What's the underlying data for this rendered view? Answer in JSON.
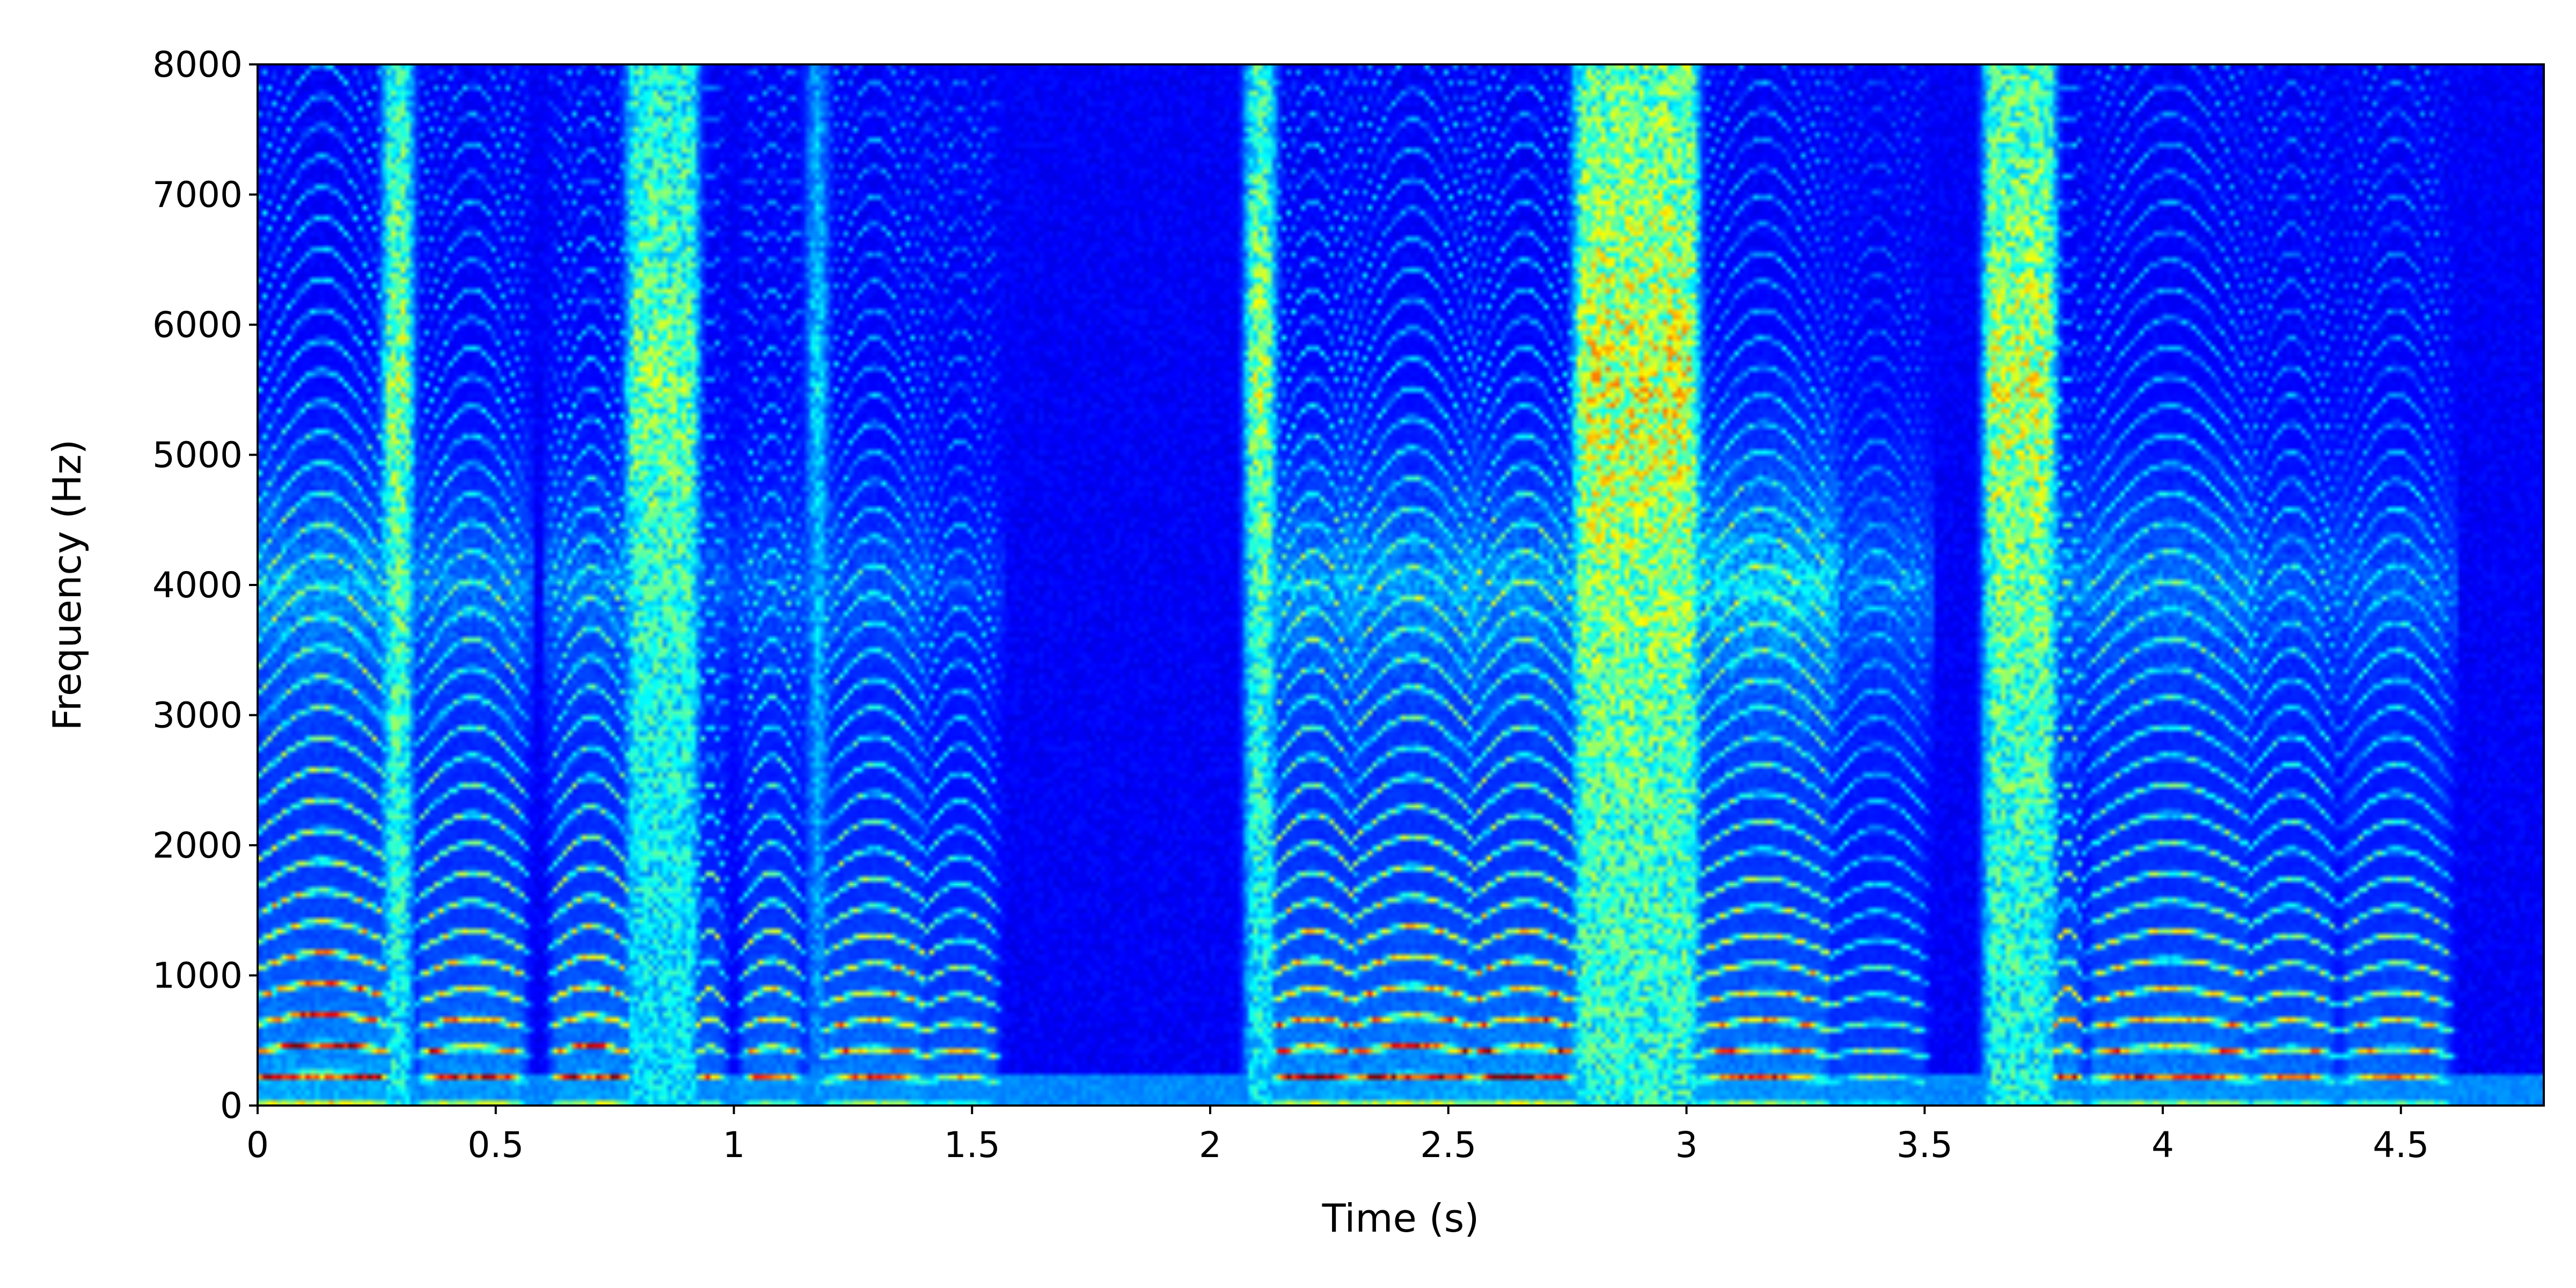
{
  "chart_data": {
    "type": "heatmap",
    "subtype": "spectrogram",
    "title": "",
    "xlabel": "Time (s)",
    "ylabel": "Frequency (Hz)",
    "xlim": [
      0,
      4.8
    ],
    "ylim": [
      0,
      8000
    ],
    "xticks": [
      0,
      0.5,
      1,
      1.5,
      2,
      2.5,
      3,
      3.5,
      4,
      4.5
    ],
    "xtick_labels": [
      "0",
      "0.5",
      "1",
      "1.5",
      "2",
      "2.5",
      "3",
      "3.5",
      "4",
      "4.5"
    ],
    "yticks": [
      0,
      1000,
      2000,
      3000,
      4000,
      5000,
      6000,
      7000,
      8000
    ],
    "ytick_labels": [
      "0",
      "1000",
      "2000",
      "3000",
      "4000",
      "5000",
      "6000",
      "7000",
      "8000"
    ],
    "colormap": "jet",
    "colors": {
      "low": "#00008f",
      "mid": "#00ffff",
      "high": "#ffff00",
      "peak": "#ff0000"
    },
    "grid": false,
    "legend": "none",
    "segments": [
      {
        "start": 0.0,
        "end": 0.27,
        "kind": "voiced",
        "f0": 210,
        "energy": 0.95,
        "high_energy": 0.25
      },
      {
        "start": 0.27,
        "end": 0.32,
        "kind": "fricative",
        "energy": 0.55,
        "high_energy": 0.6
      },
      {
        "start": 0.34,
        "end": 0.56,
        "kind": "voiced",
        "f0": 200,
        "energy": 0.85,
        "high_energy": 0.2
      },
      {
        "start": 0.62,
        "end": 0.78,
        "kind": "voiced",
        "f0": 205,
        "energy": 0.85,
        "high_energy": 0.2
      },
      {
        "start": 0.78,
        "end": 0.92,
        "kind": "fricative",
        "energy": 0.5,
        "high_energy": 0.55
      },
      {
        "start": 0.92,
        "end": 0.98,
        "kind": "voiced",
        "f0": 200,
        "energy": 0.7,
        "high_energy": 0.15
      },
      {
        "start": 1.02,
        "end": 1.14,
        "kind": "voiced",
        "f0": 200,
        "energy": 0.75,
        "high_energy": 0.15
      },
      {
        "start": 1.16,
        "end": 1.19,
        "kind": "fricative",
        "energy": 0.35,
        "high_energy": 0.35
      },
      {
        "start": 1.19,
        "end": 1.4,
        "kind": "voiced",
        "f0": 195,
        "energy": 0.8,
        "high_energy": 0.15
      },
      {
        "start": 1.4,
        "end": 1.55,
        "kind": "voiced",
        "f0": 190,
        "energy": 0.65,
        "high_energy": 0.1
      },
      {
        "start": 2.08,
        "end": 2.13,
        "kind": "fricative",
        "energy": 0.55,
        "high_energy": 0.6
      },
      {
        "start": 2.13,
        "end": 2.3,
        "kind": "voiced",
        "f0": 200,
        "energy": 0.9,
        "high_energy": 0.25
      },
      {
        "start": 2.3,
        "end": 2.55,
        "kind": "voiced",
        "f0": 205,
        "energy": 0.9,
        "high_energy": 0.25
      },
      {
        "start": 2.55,
        "end": 2.77,
        "kind": "voiced",
        "f0": 200,
        "energy": 0.9,
        "high_energy": 0.25
      },
      {
        "start": 2.77,
        "end": 3.02,
        "kind": "fricative",
        "energy": 0.65,
        "high_energy": 0.7
      },
      {
        "start": 3.02,
        "end": 3.3,
        "kind": "voiced",
        "f0": 195,
        "energy": 0.8,
        "high_energy": 0.35
      },
      {
        "start": 3.3,
        "end": 3.5,
        "kind": "voiced",
        "f0": 190,
        "energy": 0.5,
        "high_energy": 0.2
      },
      {
        "start": 3.63,
        "end": 3.77,
        "kind": "fricative",
        "energy": 0.6,
        "high_energy": 0.65
      },
      {
        "start": 3.77,
        "end": 3.83,
        "kind": "voiced",
        "f0": 200,
        "energy": 0.85,
        "high_energy": 0.2
      },
      {
        "start": 3.85,
        "end": 4.18,
        "kind": "voiced",
        "f0": 200,
        "energy": 0.8,
        "high_energy": 0.2
      },
      {
        "start": 4.18,
        "end": 4.36,
        "kind": "voiced",
        "f0": 195,
        "energy": 0.7,
        "high_energy": 0.15
      },
      {
        "start": 4.38,
        "end": 4.6,
        "kind": "voiced",
        "f0": 195,
        "energy": 0.7,
        "high_energy": 0.15
      }
    ]
  }
}
